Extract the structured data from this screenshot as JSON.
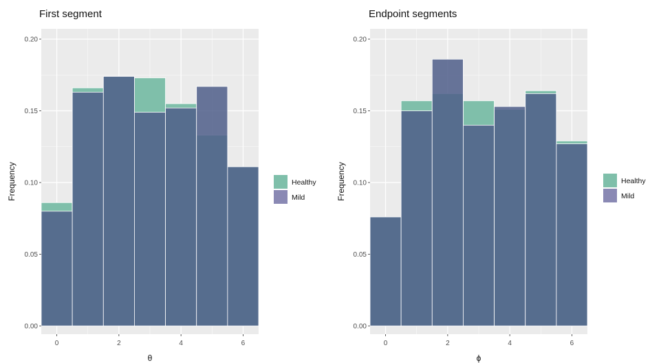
{
  "chart_data": [
    {
      "type": "bar",
      "title": "First segment",
      "xlabel": "θ",
      "ylabel": "Frequency",
      "xlim": [
        -0.5,
        6.5
      ],
      "ylim": [
        0,
        0.2
      ],
      "x": [
        0,
        1,
        2,
        3,
        4,
        5,
        6
      ],
      "xticks": [
        "0",
        "2",
        "4",
        "6"
      ],
      "yticks": [
        "0.00",
        "0.05",
        "0.10",
        "0.15",
        "0.20"
      ],
      "grid": true,
      "legend_position": "right",
      "series": [
        {
          "name": "Healthy",
          "values": [
            0.086,
            0.166,
            0.174,
            0.173,
            0.155,
            0.133,
            0.111
          ]
        },
        {
          "name": "Mild",
          "values": [
            0.08,
            0.163,
            0.174,
            0.149,
            0.152,
            0.167,
            0.111
          ]
        }
      ]
    },
    {
      "type": "bar",
      "title": "Endpoint segments",
      "xlabel": "ϕ",
      "ylabel": "Frequency",
      "xlim": [
        -0.5,
        6.5
      ],
      "ylim": [
        0,
        0.2
      ],
      "x": [
        0,
        1,
        2,
        3,
        4,
        5,
        6
      ],
      "xticks": [
        "0",
        "2",
        "4",
        "6"
      ],
      "yticks": [
        "0.00",
        "0.05",
        "0.10",
        "0.15",
        "0.20"
      ],
      "grid": true,
      "legend_position": "right",
      "series": [
        {
          "name": "Healthy",
          "values": [
            0.076,
            0.157,
            0.162,
            0.157,
            0.151,
            0.164,
            0.129
          ]
        },
        {
          "name": "Mild",
          "values": [
            0.076,
            0.15,
            0.186,
            0.14,
            0.153,
            0.162,
            0.127
          ]
        }
      ]
    }
  ],
  "colors": {
    "panel_background": "#ebebeb",
    "grid": "#ffffff",
    "healthy": "#7fbfaa",
    "mild": "#4f5e8a",
    "overlap": "#5f7092"
  }
}
